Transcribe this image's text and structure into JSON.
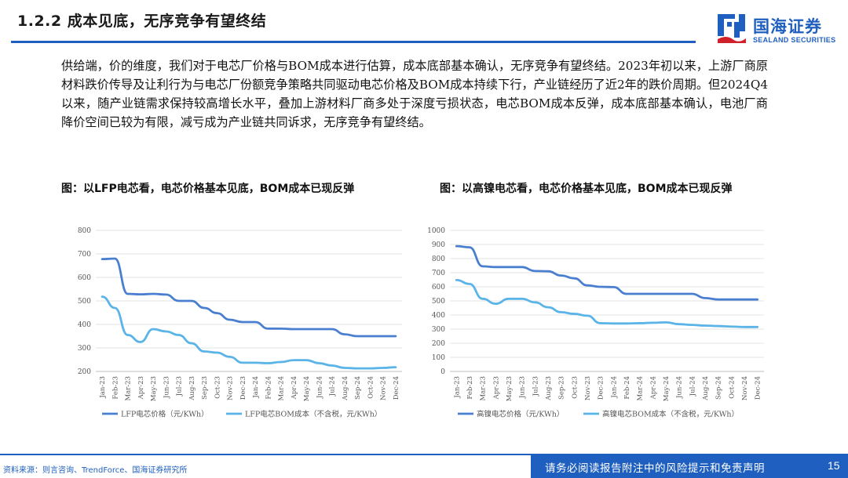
{
  "header": {
    "section_title": "1.2.2 成本见底，无序竞争有望终结",
    "logo_cn": "国海证券",
    "logo_en": "SEALAND SECURITIES",
    "brand_color": "#1f5fbf"
  },
  "body_text": "供给端，价的维度，我们对于电芯厂价格与BOM成本进行估算，成本底部基本确认，无序竞争有望终结。2023年初以来，上游厂商原材料跌价传导及让利行为与电芯厂份额竞争策略共同驱动电芯价格及BOM成本持续下行，产业链经历了近2年的跌价周期。但2024Q4以来，随产业链需求保持较高增长水平，叠加上游材料厂商多处于深度亏损状态，电芯BOM成本反弹，成本底部基本确认，电池厂商降价空间已较为有限，减亏成为产业链共同诉求，无序竞争有望终结。",
  "figures": {
    "left_title": "图：以LFP电芯看，电芯价格基本见底，BOM成本已现反弹",
    "right_title": "图：以高镍电芯看，电芯价格基本见底，BOM成本已现反弹"
  },
  "chart_data": [
    {
      "type": "line",
      "title": "",
      "xlabel": "",
      "ylabel": "",
      "ylim": [
        200,
        800
      ],
      "yticks": [
        200,
        300,
        400,
        500,
        600,
        700,
        800
      ],
      "grid": true,
      "legend_placement": "bottom",
      "categories": [
        "Jan-23",
        "Feb-23",
        "Mar-23",
        "Apr-23",
        "May-23",
        "Jun-23",
        "Jul-23",
        "Aug-23",
        "Sep-23",
        "Oct-23",
        "Nov-23",
        "Dec-23",
        "Jan-24",
        "Feb-24",
        "Mar-24",
        "Apr-24",
        "May-24",
        "Jun-24",
        "Jul-24",
        "Aug-24",
        "Sep-24",
        "Oct-24",
        "Nov-24",
        "Dec-24"
      ],
      "series": [
        {
          "name": "LFP电芯价格（元/KWh）",
          "color": "#4a7fd0",
          "values": [
            678,
            680,
            530,
            528,
            530,
            527,
            500,
            500,
            470,
            448,
            420,
            410,
            410,
            382,
            382,
            380,
            380,
            380,
            380,
            358,
            350,
            350,
            350,
            350
          ]
        },
        {
          "name": "LFP电芯BOM成本（不含税，元/KWh）",
          "color": "#5ab4e8",
          "values": [
            518,
            470,
            355,
            325,
            380,
            370,
            355,
            320,
            285,
            280,
            262,
            237,
            237,
            235,
            240,
            248,
            248,
            235,
            225,
            215,
            213,
            213,
            215,
            218
          ]
        }
      ]
    },
    {
      "type": "line",
      "title": "",
      "xlabel": "",
      "ylabel": "",
      "ylim": [
        0,
        1000
      ],
      "yticks": [
        0,
        100,
        200,
        300,
        400,
        500,
        600,
        700,
        800,
        900,
        1000
      ],
      "grid": true,
      "legend_placement": "bottom",
      "categories": [
        "Jan-23",
        "Feb-23",
        "Mar-23",
        "Apr-23",
        "May-23",
        "Jun-23",
        "Jul-23",
        "Aug-23",
        "Sep-23",
        "Oct-23",
        "Nov-23",
        "Dec-23",
        "Jan-24",
        "Feb-24",
        "Mar-24",
        "Apr-24",
        "May-24",
        "Jun-24",
        "Jul-24",
        "Aug-24",
        "Sep-24",
        "Oct-24",
        "Nov-24",
        "Dec-24"
      ],
      "series": [
        {
          "name": "高镍电芯价格（元/KWh）",
          "color": "#4a7fd0",
          "values": [
            888,
            880,
            745,
            740,
            740,
            740,
            712,
            710,
            680,
            660,
            610,
            600,
            598,
            550,
            550,
            550,
            550,
            550,
            550,
            520,
            510,
            510,
            510,
            510
          ]
        },
        {
          "name": "高镍电芯BOM成本（不含税，元/KWh）",
          "color": "#5ab4e8",
          "values": [
            648,
            620,
            515,
            480,
            515,
            515,
            490,
            455,
            420,
            408,
            395,
            342,
            340,
            340,
            342,
            345,
            348,
            335,
            330,
            325,
            322,
            318,
            315,
            315
          ]
        }
      ]
    }
  ],
  "footer": {
    "source": "资料来源：则言咨询、TrendForce、国海证券研究所",
    "disclaimer": "请务必阅读报告附注中的风险提示和免责声明",
    "page_number": "15"
  }
}
